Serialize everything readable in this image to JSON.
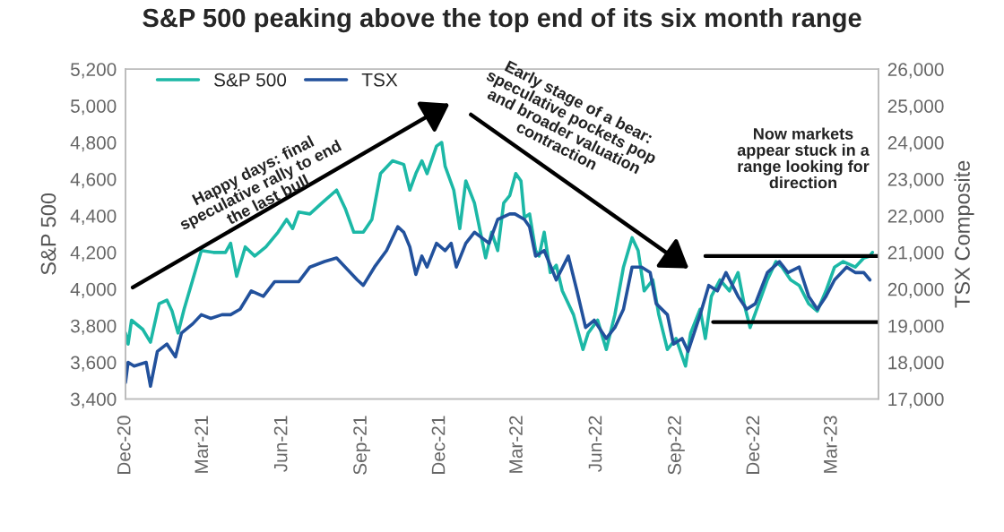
{
  "chart_data": {
    "type": "line",
    "title": "S&P 500 peaking above the top end of its six month range",
    "ylabel": "S&P 500",
    "y2label": "TSX Composite",
    "xlim": [
      "2020-12-01",
      "2023-04-24"
    ],
    "xticks": [
      {
        "value": "2020-12-01",
        "label": "Dec-20"
      },
      {
        "value": "2021-03-01",
        "label": "Mar-21"
      },
      {
        "value": "2021-06-01",
        "label": "Jun-21"
      },
      {
        "value": "2021-09-01",
        "label": "Sep-21"
      },
      {
        "value": "2021-12-01",
        "label": "Dec-21"
      },
      {
        "value": "2022-03-01",
        "label": "Mar-22"
      },
      {
        "value": "2022-06-01",
        "label": "Jun-22"
      },
      {
        "value": "2022-09-01",
        "label": "Sep-22"
      },
      {
        "value": "2022-12-01",
        "label": "Dec-22"
      },
      {
        "value": "2023-03-01",
        "label": "Mar-23"
      }
    ],
    "ylim": [
      3400,
      5200
    ],
    "yticks": [
      {
        "value": 3400,
        "label": "3,400"
      },
      {
        "value": 3600,
        "label": "3,600"
      },
      {
        "value": 3800,
        "label": "3,800"
      },
      {
        "value": 4000,
        "label": "4,000"
      },
      {
        "value": 4200,
        "label": "4,200"
      },
      {
        "value": 4400,
        "label": "4,400"
      },
      {
        "value": 4600,
        "label": "4,600"
      },
      {
        "value": 4800,
        "label": "4,800"
      },
      {
        "value": 5000,
        "label": "5,000"
      },
      {
        "value": 5200,
        "label": "5,200"
      }
    ],
    "y2lim": [
      17000,
      26000
    ],
    "y2ticks": [
      {
        "value": 17000,
        "label": "17,000"
      },
      {
        "value": 18000,
        "label": "18,000"
      },
      {
        "value": 19000,
        "label": "19,000"
      },
      {
        "value": 20000,
        "label": "20,000"
      },
      {
        "value": 21000,
        "label": "21,000"
      },
      {
        "value": 22000,
        "label": "22,000"
      },
      {
        "value": 23000,
        "label": "23,000"
      },
      {
        "value": 24000,
        "label": "24,000"
      },
      {
        "value": 25000,
        "label": "25,000"
      },
      {
        "value": 26000,
        "label": "26,000"
      }
    ],
    "legend": "top left",
    "grid": false,
    "marker": "none",
    "line_style": "solid",
    "annotations": [
      "Happy days: final\nspeculative rally to end\nthe last bull",
      "Early stage of a bear:\nspeculative pockets pop\nand broader valuation\ncontraction",
      "Now markets\nappear stuck in a\nrange looking for\ndirection"
    ],
    "series": [
      {
        "name": "S&P 500",
        "color": "#1cb8a6",
        "x": [
          "2020-12-01",
          "2020-12-04",
          "2020-12-08",
          "2020-12-21",
          "2020-12-30",
          "2021-01-09",
          "2021-01-18",
          "2021-01-24",
          "2021-01-31",
          "2021-02-07",
          "2021-02-17",
          "2021-02-27",
          "2021-03-13",
          "2021-03-27",
          "2021-04-02",
          "2021-04-09",
          "2021-04-19",
          "2021-04-30",
          "2021-05-13",
          "2021-05-27",
          "2021-06-06",
          "2021-06-13",
          "2021-06-20",
          "2021-07-03",
          "2021-07-17",
          "2021-08-03",
          "2021-08-13",
          "2021-08-23",
          "2021-09-03",
          "2021-09-13",
          "2021-09-23",
          "2021-10-07",
          "2021-10-20",
          "2021-10-27",
          "2021-11-03",
          "2021-11-10",
          "2021-11-16",
          "2021-11-27",
          "2021-12-03",
          "2021-12-07",
          "2021-12-17",
          "2021-12-24",
          "2021-12-31",
          "2022-01-10",
          "2022-01-23",
          "2022-01-30",
          "2022-02-06",
          "2022-02-13",
          "2022-02-20",
          "2022-02-27",
          "2022-03-05",
          "2022-03-09",
          "2022-03-15",
          "2022-03-22",
          "2022-03-26",
          "2022-04-01",
          "2022-04-08",
          "2022-04-15",
          "2022-04-22",
          "2022-05-05",
          "2022-05-16",
          "2022-05-22",
          "2022-06-02",
          "2022-06-12",
          "2022-06-22",
          "2022-07-02",
          "2022-07-12",
          "2022-07-19",
          "2022-07-26",
          "2022-08-05",
          "2022-08-12",
          "2022-08-22",
          "2022-09-01",
          "2022-09-12",
          "2022-09-18",
          "2022-09-29",
          "2022-10-05",
          "2022-10-12",
          "2022-10-22",
          "2022-11-02",
          "2022-11-12",
          "2022-11-19",
          "2022-11-26",
          "2022-12-06",
          "2022-12-16",
          "2022-12-26",
          "2023-01-02",
          "2023-01-12",
          "2023-01-22",
          "2023-02-02",
          "2023-02-12",
          "2023-02-22",
          "2023-03-04",
          "2023-03-14",
          "2023-03-28",
          "2023-04-07",
          "2023-04-14",
          "2023-04-17"
        ],
        "values": [
          3760,
          3700,
          3830,
          3780,
          3710,
          3920,
          3940,
          3880,
          3760,
          3890,
          4050,
          4210,
          4200,
          4200,
          4250,
          4070,
          4230,
          4180,
          4230,
          4310,
          4380,
          4330,
          4420,
          4410,
          4470,
          4540,
          4440,
          4310,
          4310,
          4380,
          4630,
          4700,
          4680,
          4540,
          4630,
          4700,
          4630,
          4780,
          4800,
          4670,
          4540,
          4330,
          4590,
          4470,
          4170,
          4310,
          4210,
          4470,
          4510,
          4630,
          4590,
          4390,
          4410,
          4210,
          4180,
          4310,
          4090,
          4130,
          3990,
          3860,
          3670,
          3760,
          3830,
          3670,
          3860,
          4120,
          4280,
          4210,
          3990,
          4050,
          3860,
          3670,
          3730,
          3580,
          3760,
          3890,
          3730,
          3960,
          4050,
          3990,
          4090,
          3920,
          3790,
          3920,
          4050,
          4150,
          4120,
          4050,
          4020,
          3920,
          3880,
          3990,
          4120,
          4150,
          4120,
          4170,
          4180,
          4200
        ]
      },
      {
        "name": "TSX",
        "color": "#22519c",
        "axis": "y2",
        "x": [
          "2020-12-01",
          "2020-12-04",
          "2020-12-11",
          "2020-12-25",
          "2020-12-30",
          "2021-01-07",
          "2021-01-18",
          "2021-01-28",
          "2021-02-04",
          "2021-02-17",
          "2021-02-27",
          "2021-03-10",
          "2021-03-23",
          "2021-04-02",
          "2021-04-13",
          "2021-04-26",
          "2021-05-10",
          "2021-05-23",
          "2021-06-06",
          "2021-06-20",
          "2021-07-03",
          "2021-07-20",
          "2021-08-03",
          "2021-08-13",
          "2021-08-27",
          "2021-09-03",
          "2021-09-16",
          "2021-09-30",
          "2021-10-13",
          "2021-10-20",
          "2021-10-27",
          "2021-11-03",
          "2021-11-10",
          "2021-11-16",
          "2021-11-27",
          "2021-12-07",
          "2021-12-14",
          "2021-12-20",
          "2021-12-31",
          "2022-01-10",
          "2022-01-27",
          "2022-02-06",
          "2022-02-20",
          "2022-02-26",
          "2022-03-09",
          "2022-03-15",
          "2022-03-22",
          "2022-04-01",
          "2022-04-15",
          "2022-04-29",
          "2022-05-09",
          "2022-05-19",
          "2022-05-29",
          "2022-06-12",
          "2022-06-22",
          "2022-07-02",
          "2022-07-12",
          "2022-07-23",
          "2022-08-02",
          "2022-08-09",
          "2022-08-22",
          "2022-08-29",
          "2022-09-08",
          "2022-09-15",
          "2022-09-29",
          "2022-10-09",
          "2022-10-19",
          "2022-10-29",
          "2022-11-12",
          "2022-11-22",
          "2022-12-02",
          "2022-12-16",
          "2022-12-30",
          "2023-01-09",
          "2023-01-22",
          "2023-02-02",
          "2023-02-12",
          "2023-02-22",
          "2023-03-04",
          "2023-03-18",
          "2023-03-28",
          "2023-04-07",
          "2023-04-14"
        ],
        "values": [
          17450,
          18000,
          17900,
          18000,
          17350,
          18300,
          18500,
          18150,
          18800,
          19050,
          19300,
          19200,
          19300,
          19300,
          19450,
          19950,
          19800,
          20200,
          20200,
          20200,
          20600,
          20750,
          20850,
          20600,
          20250,
          20100,
          20600,
          21050,
          21700,
          21550,
          21150,
          20400,
          20900,
          20600,
          21250,
          21050,
          21250,
          20600,
          21250,
          21550,
          21250,
          21900,
          22050,
          22050,
          21900,
          21700,
          20900,
          21050,
          20250,
          20900,
          19950,
          18950,
          19150,
          18650,
          18950,
          19450,
          20600,
          20600,
          20450,
          19600,
          19300,
          18500,
          18650,
          18300,
          19300,
          20100,
          19950,
          20450,
          19800,
          19450,
          19600,
          20450,
          20750,
          20450,
          20600,
          19800,
          19450,
          19800,
          20250,
          20600,
          20450,
          20450,
          20250
        ]
      },
      {
        "type": "line",
        "color": "#000000",
        "axis": "y2",
        "x": [
          "2022-10-05",
          "2023-04-24"
        ],
        "values": [
          20900,
          20900
        ]
      },
      {
        "type": "line",
        "color": "#000000",
        "axis": "y2",
        "x": [
          "2022-10-14",
          "2023-04-24"
        ],
        "values": [
          19100,
          19100
        ]
      }
    ]
  }
}
